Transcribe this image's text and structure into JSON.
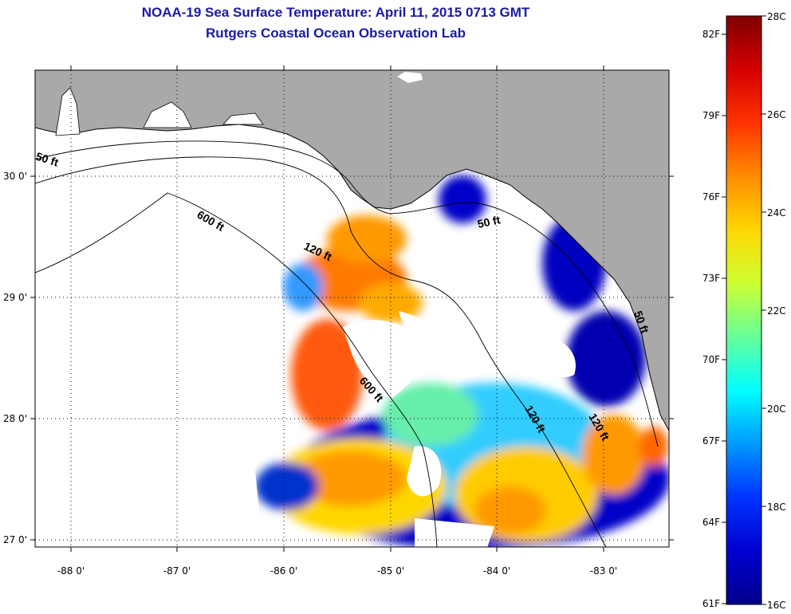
{
  "title": {
    "line1": "NOAA-19 Sea Surface Temperature:  April 11, 2015 0713 GMT",
    "line2": "Rutgers Coastal Ocean Observation Lab"
  },
  "map": {
    "x_ticks": [
      "-88 0'",
      "-87 0'",
      "-86 0'",
      "-85 0'",
      "-84 0'",
      "-83 0'"
    ],
    "y_ticks": [
      "30 0'",
      "29 0'",
      "28 0'",
      "27 0'"
    ],
    "contour_labels": [
      "50 ft",
      "600 ft",
      "120 ft",
      "50 ft",
      "600 ft",
      "120 ft",
      "120 ft",
      "50 ft"
    ],
    "colors": {
      "land": "#a9a9a9",
      "cloud": "#ffffff",
      "outline": "#000000"
    }
  },
  "colorbar": {
    "c_labels": [
      "28C",
      "26C",
      "24C",
      "22C",
      "20C",
      "18C",
      "16C"
    ],
    "f_labels": [
      "82F",
      "79F",
      "76F",
      "73F",
      "70F",
      "67F",
      "64F",
      "61F"
    ],
    "colormap": [
      "#7f0000",
      "#d40000",
      "#ff3300",
      "#ff8c00",
      "#ffd700",
      "#ccff33",
      "#66ff99",
      "#00ffff",
      "#0099ff",
      "#0033ff",
      "#0000d0",
      "#00008b"
    ]
  }
}
